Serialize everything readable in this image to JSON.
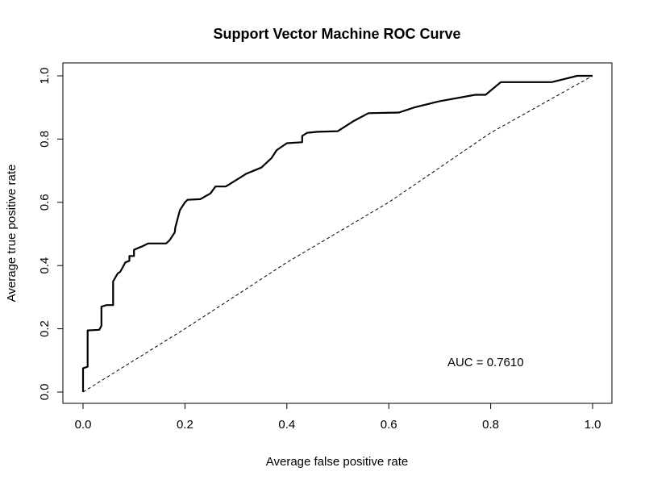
{
  "chart_data": {
    "type": "line",
    "title": "Support Vector Machine ROC Curve",
    "xlabel": "Average false positive rate",
    "ylabel": "Average true positive rate",
    "xlim": [
      0.0,
      1.0
    ],
    "ylim": [
      0.0,
      1.0
    ],
    "xticks": [
      "0.0",
      "0.2",
      "0.4",
      "0.6",
      "0.8",
      "1.0"
    ],
    "yticks": [
      "0.0",
      "0.2",
      "0.4",
      "0.6",
      "0.8",
      "1.0"
    ],
    "grid": false,
    "annotation": {
      "text": "AUC = 0.7610",
      "x": 0.79,
      "y": 0.095
    },
    "series": [
      {
        "style": "solid",
        "color": "#000000",
        "x": [
          0.0,
          0.0,
          0.009,
          0.009,
          0.032,
          0.036,
          0.036,
          0.046,
          0.059,
          0.059,
          0.068,
          0.073,
          0.083,
          0.091,
          0.091,
          0.1,
          0.1,
          0.115,
          0.128,
          0.15,
          0.163,
          0.17,
          0.18,
          0.181,
          0.19,
          0.2,
          0.205,
          0.23,
          0.25,
          0.26,
          0.28,
          0.3,
          0.32,
          0.35,
          0.37,
          0.38,
          0.4,
          0.43,
          0.43,
          0.44,
          0.46,
          0.5,
          0.53,
          0.56,
          0.62,
          0.65,
          0.7,
          0.77,
          0.79,
          0.82,
          0.92,
          0.97,
          1.0
        ],
        "y": [
          0.0,
          0.075,
          0.08,
          0.195,
          0.197,
          0.21,
          0.27,
          0.275,
          0.275,
          0.35,
          0.375,
          0.38,
          0.41,
          0.415,
          0.43,
          0.43,
          0.45,
          0.46,
          0.47,
          0.47,
          0.47,
          0.48,
          0.505,
          0.52,
          0.575,
          0.6,
          0.608,
          0.61,
          0.628,
          0.65,
          0.65,
          0.67,
          0.69,
          0.71,
          0.74,
          0.765,
          0.787,
          0.79,
          0.81,
          0.82,
          0.823,
          0.825,
          0.856,
          0.882,
          0.884,
          0.9,
          0.92,
          0.94,
          0.94,
          0.98,
          0.98,
          1.0,
          1.0
        ]
      },
      {
        "style": "dashed",
        "color": "#000000",
        "x": [
          0.0,
          0.2,
          0.4,
          0.6,
          0.8,
          1.0
        ],
        "y": [
          0.0,
          0.2,
          0.41,
          0.6,
          0.82,
          1.0
        ]
      }
    ]
  }
}
